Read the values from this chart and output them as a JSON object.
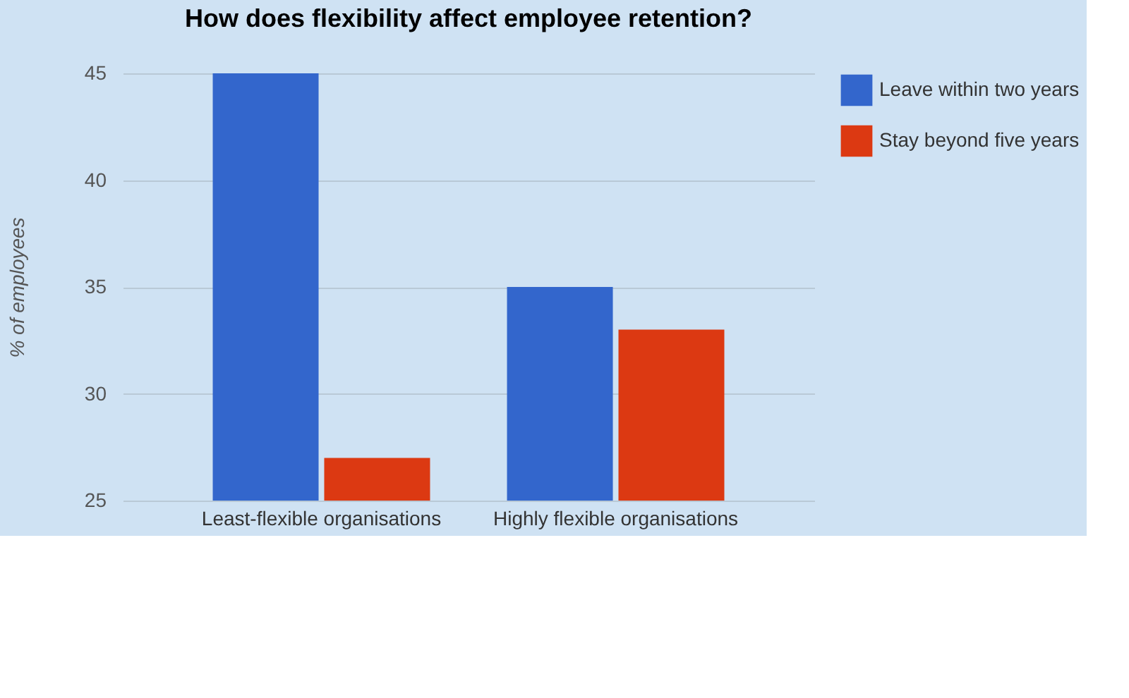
{
  "chart_data": {
    "type": "bar",
    "title": "How does flexibility affect employee retention?",
    "ylabel": "% of employees",
    "categories": [
      "Least-flexible organisations",
      "Highly flexible organisations"
    ],
    "series": [
      {
        "name": "Leave within two years",
        "color": "#3366cc",
        "values": [
          45,
          35
        ]
      },
      {
        "name": "Stay beyond five years",
        "color": "#dc3912",
        "values": [
          27,
          33
        ]
      }
    ],
    "ylim": [
      25,
      45
    ],
    "yticks": [
      25,
      30,
      35,
      40,
      45
    ],
    "grid": "y",
    "legend": "top right"
  }
}
